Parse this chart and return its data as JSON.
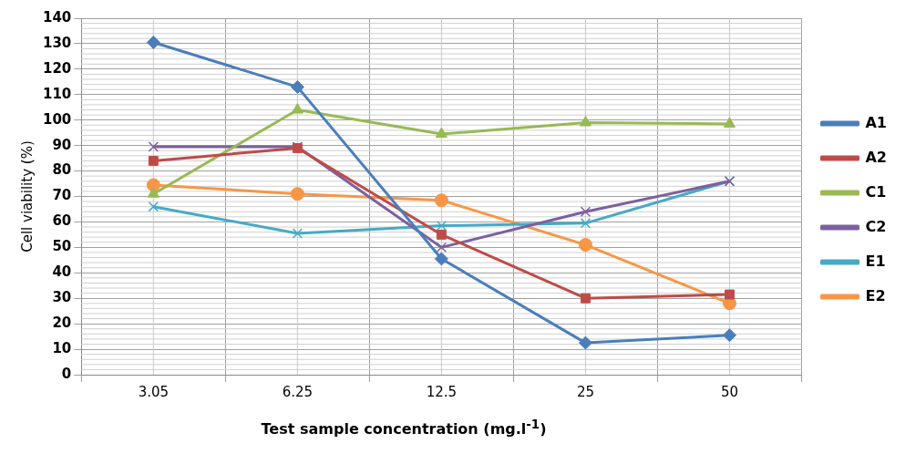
{
  "chart_data": {
    "type": "line",
    "xlabel": "Test sample concentration (mg.l$^{-1}$)",
    "ylabel": "Cell viability (%)",
    "categories": [
      "3.05",
      "6.25",
      "12.5",
      "25",
      "50"
    ],
    "ylim": [
      0,
      140
    ],
    "yticks": [
      0,
      10,
      20,
      30,
      40,
      50,
      60,
      70,
      80,
      90,
      100,
      110,
      120,
      130,
      140
    ],
    "grid": true,
    "legend": "right",
    "line_style": "solid",
    "series": [
      {
        "name": "A1",
        "color": "#4a7ebb",
        "marker": "diamond",
        "values": [
          130.5,
          113,
          45.5,
          12.5,
          15.5
        ]
      },
      {
        "name": "A2",
        "color": "#be4b48",
        "marker": "square",
        "values": [
          84,
          89,
          55,
          30,
          31.5
        ]
      },
      {
        "name": "C1",
        "color": "#98b954",
        "marker": "triangle",
        "values": [
          71,
          104,
          94.5,
          99,
          98.5
        ]
      },
      {
        "name": "C2",
        "color": "#7d60a0",
        "marker": "cross",
        "values": [
          89.5,
          89.5,
          50,
          64,
          76
        ]
      },
      {
        "name": "E1",
        "color": "#46aac5",
        "marker": "cross",
        "values": [
          66,
          55.5,
          58.5,
          59.5,
          76
        ]
      },
      {
        "name": "E2",
        "color": "#f79646",
        "marker": "circle",
        "values": [
          74.5,
          71,
          68.5,
          51,
          28
        ]
      }
    ]
  }
}
